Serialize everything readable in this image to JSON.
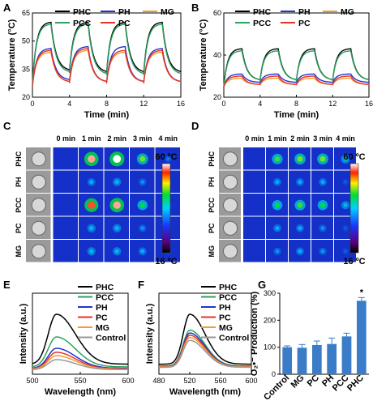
{
  "chart_data": [
    {
      "panel": "A",
      "type": "line",
      "xlabel": "Time (min)",
      "ylabel": "Temperature (°C)",
      "xlim": [
        0,
        16
      ],
      "ylim": [
        20,
        65
      ],
      "xticks": [
        0,
        4,
        8,
        12,
        16
      ],
      "yticks": [
        20,
        35,
        50,
        65
      ],
      "legend_entries": [
        "PHC",
        "PH",
        "MG",
        "PCC",
        "PC"
      ],
      "legend_position": "top",
      "cycles": {
        "period_min": 4,
        "laser_on_min": 2,
        "count": 4
      },
      "series": [
        {
          "name": "PHC",
          "color": "#000000",
          "peaks": [
            60,
            60,
            60,
            60
          ],
          "troughs": [
            27,
            34,
            33,
            33
          ]
        },
        {
          "name": "PH",
          "color": "#2233cc",
          "peaks": [
            46,
            47,
            47,
            46
          ],
          "troughs": [
            26,
            29,
            28,
            28
          ]
        },
        {
          "name": "MG",
          "color": "#f39c35",
          "peaks": [
            44,
            45,
            44,
            44
          ],
          "troughs": [
            26,
            28,
            28,
            28
          ]
        },
        {
          "name": "PCC",
          "color": "#2ca25f",
          "peaks": [
            59,
            59,
            59,
            59
          ],
          "troughs": [
            27,
            33,
            32,
            32
          ]
        },
        {
          "name": "PC",
          "color": "#e8332a",
          "peaks": [
            45,
            46,
            45,
            45
          ],
          "troughs": [
            26,
            28,
            28,
            28
          ]
        }
      ]
    },
    {
      "panel": "B",
      "type": "line",
      "xlabel": "Time (min)",
      "ylabel": "Temperature (°C)",
      "xlim": [
        0,
        16
      ],
      "ylim": [
        20,
        60
      ],
      "xticks": [
        0,
        4,
        8,
        12,
        16
      ],
      "yticks": [
        20,
        40,
        60
      ],
      "legend_entries": [
        "PHC",
        "PH",
        "MG",
        "PCC",
        "PC"
      ],
      "legend_position": "top",
      "cycles": {
        "period_min": 4,
        "laser_on_min": 2,
        "count": 4
      },
      "series": [
        {
          "name": "PHC",
          "color": "#000000",
          "peaks": [
            43,
            43,
            43,
            43
          ],
          "troughs": [
            25,
            28,
            28,
            28
          ]
        },
        {
          "name": "PH",
          "color": "#2233cc",
          "peaks": [
            31,
            31,
            31,
            31
          ],
          "troughs": [
            25,
            27,
            27,
            27
          ]
        },
        {
          "name": "MG",
          "color": "#f39c35",
          "peaks": [
            29,
            29,
            29,
            29
          ],
          "troughs": [
            25,
            26,
            26,
            26
          ]
        },
        {
          "name": "PCC",
          "color": "#2ca25f",
          "peaks": [
            42,
            42,
            42,
            42
          ],
          "troughs": [
            25,
            28,
            28,
            28
          ]
        },
        {
          "name": "PC",
          "color": "#e8332a",
          "peaks": [
            30,
            30,
            30,
            30
          ],
          "troughs": [
            25,
            26,
            26,
            26
          ]
        }
      ]
    },
    {
      "panel": "C",
      "type": "heatmap",
      "columns": [
        "0 min",
        "1 min",
        "2 min",
        "3 min",
        "4 min"
      ],
      "rows": [
        "PHC",
        "PH",
        "PCC",
        "PC",
        "MG"
      ],
      "scale_max": "60 ºC",
      "scale_min": "16 ºC",
      "intensity": [
        [
          0.05,
          0.95,
          1.0,
          0.6,
          0.15
        ],
        [
          0.05,
          0.25,
          0.3,
          0.2,
          0.1
        ],
        [
          0.05,
          0.9,
          0.95,
          0.5,
          0.15
        ],
        [
          0.05,
          0.3,
          0.3,
          0.2,
          0.1
        ],
        [
          0.05,
          0.3,
          0.3,
          0.25,
          0.1
        ]
      ]
    },
    {
      "panel": "D",
      "type": "heatmap",
      "columns": [
        "0 min",
        "1 min",
        "2 min",
        "3 min",
        "4 min"
      ],
      "rows": [
        "PHC",
        "PH",
        "PCC",
        "PC",
        "MG"
      ],
      "scale_max": "60 ºC",
      "scale_min": "16 ºC",
      "intensity": [
        [
          0.05,
          0.55,
          0.6,
          0.6,
          0.35
        ],
        [
          0.05,
          0.25,
          0.25,
          0.25,
          0.1
        ],
        [
          0.05,
          0.5,
          0.55,
          0.5,
          0.3
        ],
        [
          0.05,
          0.25,
          0.25,
          0.2,
          0.1
        ],
        [
          0.05,
          0.2,
          0.25,
          0.2,
          0.1
        ]
      ]
    },
    {
      "panel": "E",
      "type": "line",
      "xlabel": "Wavelength (nm)",
      "ylabel": "Intensity (a.u.)",
      "xlim": [
        500,
        600
      ],
      "xticks": [
        500,
        550,
        600
      ],
      "legend_entries": [
        "PHC",
        "PCC",
        "PH",
        "PC",
        "MG",
        "Control"
      ],
      "legend_position": "top-right",
      "peak_x": 525,
      "series": [
        {
          "name": "PHC",
          "color": "#000000",
          "peak": 1.0
        },
        {
          "name": "PCC",
          "color": "#2ca25f",
          "peak": 0.6
        },
        {
          "name": "PH",
          "color": "#2233cc",
          "peak": 0.4
        },
        {
          "name": "PC",
          "color": "#e8332a",
          "peak": 0.33
        },
        {
          "name": "MG",
          "color": "#f39c35",
          "peak": 0.27
        },
        {
          "name": "Control",
          "color": "#999999",
          "peak": 0.2
        }
      ]
    },
    {
      "panel": "F",
      "type": "line",
      "xlabel": "Wavelength (nm)",
      "ylabel": "Intensity (a.u.)",
      "xlim": [
        480,
        600
      ],
      "xticks": [
        480,
        520,
        560,
        600
      ],
      "legend_entries": [
        "PHC",
        "PCC",
        "PH",
        "PC",
        "MG",
        "Control"
      ],
      "legend_position": "top-right",
      "peak_x": 520,
      "series": [
        {
          "name": "PHC",
          "color": "#000000",
          "peak": 1.0
        },
        {
          "name": "PCC",
          "color": "#2ca25f",
          "peak": 0.72
        },
        {
          "name": "PH",
          "color": "#2233cc",
          "peak": 0.67
        },
        {
          "name": "PC",
          "color": "#e8332a",
          "peak": 0.63
        },
        {
          "name": "MG",
          "color": "#f39c35",
          "peak": 0.59
        },
        {
          "name": "Control",
          "color": "#999999",
          "peak": 0.54
        }
      ]
    },
    {
      "panel": "G",
      "type": "bar",
      "ylabel": "O₂•⁻ Production (%)",
      "categories": [
        "Control",
        "MG",
        "PC",
        "PH",
        "PCC",
        "PHC"
      ],
      "values": [
        100,
        98,
        108,
        112,
        140,
        272
      ],
      "errors": [
        5,
        12,
        15,
        22,
        12,
        12
      ],
      "ylim": [
        0,
        300
      ],
      "yticks": [
        0,
        100,
        200,
        300
      ],
      "bar_color": "#3a7cc7",
      "annotation": "*"
    }
  ]
}
